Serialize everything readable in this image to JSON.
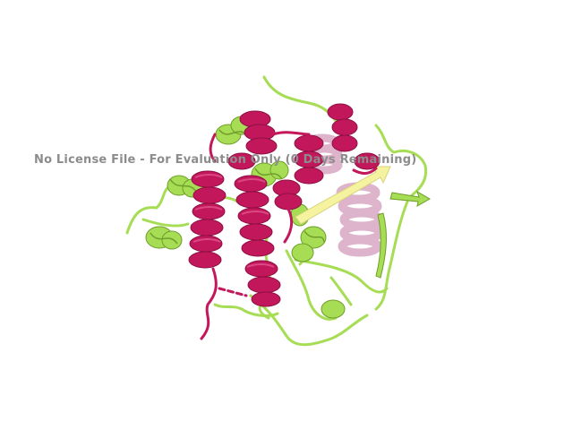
{
  "viewer": {
    "watermark": "No License File - For Evaluation Only (0 Days Remaining)"
  },
  "colors": {
    "background": "#ffffff",
    "chain_a": "#c2185b",
    "chain_a_shadow": "#8e0f43",
    "chain_b": "#a6dd55",
    "chain_b_shadow": "#6f9e2a",
    "strand": "#f5f2a0",
    "faded_helix": "#d9a8c4",
    "watermark_text": "#8c8c8c"
  },
  "scene": {
    "subject": "protein-cartoon",
    "chains": [
      {
        "name": "chain-a",
        "style": "helix-cartoon"
      },
      {
        "name": "chain-b",
        "style": "loop-and-helix-cartoon"
      }
    ]
  }
}
